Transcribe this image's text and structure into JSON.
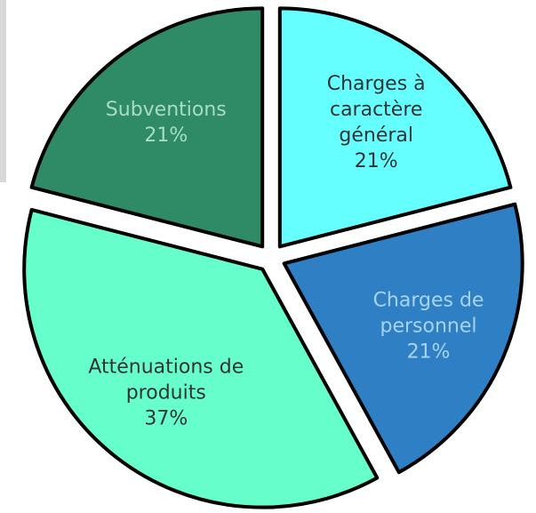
{
  "chart_data": {
    "type": "pie",
    "categories": [
      "Charges à caractère général",
      "Charges de personnel",
      "Atténuations de produits",
      "Subventions"
    ],
    "values": [
      21,
      21,
      37,
      21
    ],
    "value_labels": [
      "21%",
      "21%",
      "37%",
      "21%"
    ],
    "colors": [
      "#66ffff",
      "#2e7fc4",
      "#66ffcc",
      "#2e8b66"
    ],
    "label_colors": [
      "#333333",
      "#a8d4f4",
      "#333333",
      "#a8dcc4"
    ]
  }
}
